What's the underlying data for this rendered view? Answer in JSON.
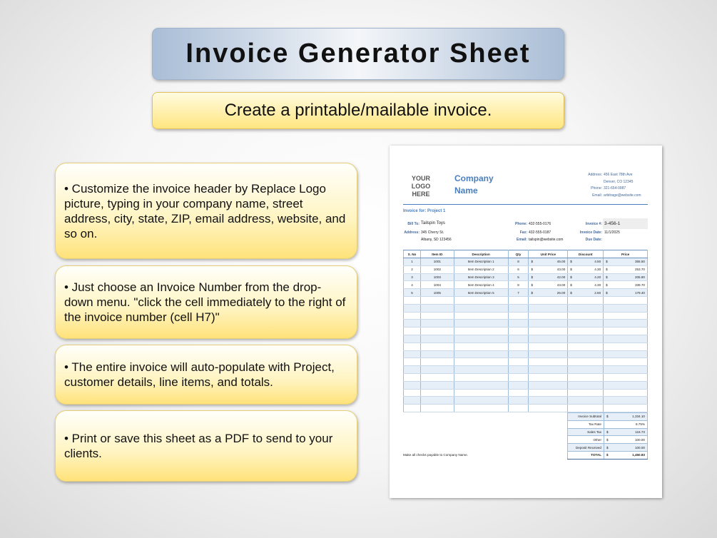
{
  "title": "Invoice Generator Sheet",
  "subtitle": "Create a printable/mailable invoice.",
  "notes": [
    "• Customize the invoice header by Replace Logo picture, typing in your company name, street address, city, state, ZIP, email address, website, and so on.",
    "• Just choose an Invoice Number from the drop-down menu. \"click the cell immediately to the right of the invoice number (cell H7)\"",
    "• The entire invoice will auto-populate with Project, customer details, line items, and totals.",
    "• Print or save this sheet as a PDF to send to your clients."
  ],
  "invoice": {
    "logo_l1": "YOUR",
    "logo_l2": "LOGO",
    "logo_l3": "HERE",
    "company_l1": "Company",
    "company_l2": "Name",
    "address_label": "Address:",
    "address1": "456 East 78th Ave",
    "address2": "Denver, CO 12345",
    "phone_label": "Phone:",
    "phone": "321-654-0987",
    "email_label": "Email:",
    "email": "arbitrage@website.com",
    "invoice_for": "Invoice for: Project 1",
    "bill_to_label": "Bill To:",
    "bill_to": "Tailspin Toys",
    "cust_address1": "345 Cherry St.",
    "cust_address2": "Albany, SD 123456",
    "cust_phone": "432-555-0176",
    "fax_label": "Fax:",
    "cust_fax": "432-555-0187",
    "cust_email": "tailspin@website.com",
    "invoice_no_label": "Invoice #:",
    "invoice_no": "3-456-1",
    "invoice_date_label": "Invoice Date:",
    "invoice_date": "11/1/2025",
    "due_date_label": "Due Date:",
    "columns": [
      "S. No",
      "Item ID",
      "Description",
      "Qty",
      "Unit Price",
      "Discount",
      "Price"
    ],
    "currency": "$",
    "rows": [
      [
        "1",
        "1001",
        "Item Description 1",
        "8",
        "45.00",
        "4.50",
        "355.50"
      ],
      [
        "2",
        "1002",
        "Item Description 2",
        "6",
        "43.00",
        "4.30",
        "253.70"
      ],
      [
        "3",
        "1003",
        "Item Description 3",
        "5",
        "42.00",
        "4.20",
        "205.80"
      ],
      [
        "4",
        "1004",
        "Item Description 4",
        "8",
        "43.00",
        "4.30",
        "339.70"
      ],
      [
        "5",
        "1005",
        "Item Description 5",
        "7",
        "26.00",
        "2.60",
        "179.40"
      ]
    ],
    "totals": [
      {
        "label": "Invoice Subtotal",
        "cur": "$",
        "value": "1,334.10"
      },
      {
        "label": "Tax Rate",
        "cur": "",
        "value": "8.75%"
      },
      {
        "label": "Sales Tax",
        "cur": "$",
        "value": "116.73"
      },
      {
        "label": "Other",
        "cur": "$",
        "value": "100.00"
      },
      {
        "label": "Deposit Received",
        "cur": "$",
        "value": "100.00"
      },
      {
        "label": "TOTAL",
        "cur": "$",
        "value": "1,450.83"
      }
    ],
    "footer": "Make all checks payable to Company Name."
  }
}
